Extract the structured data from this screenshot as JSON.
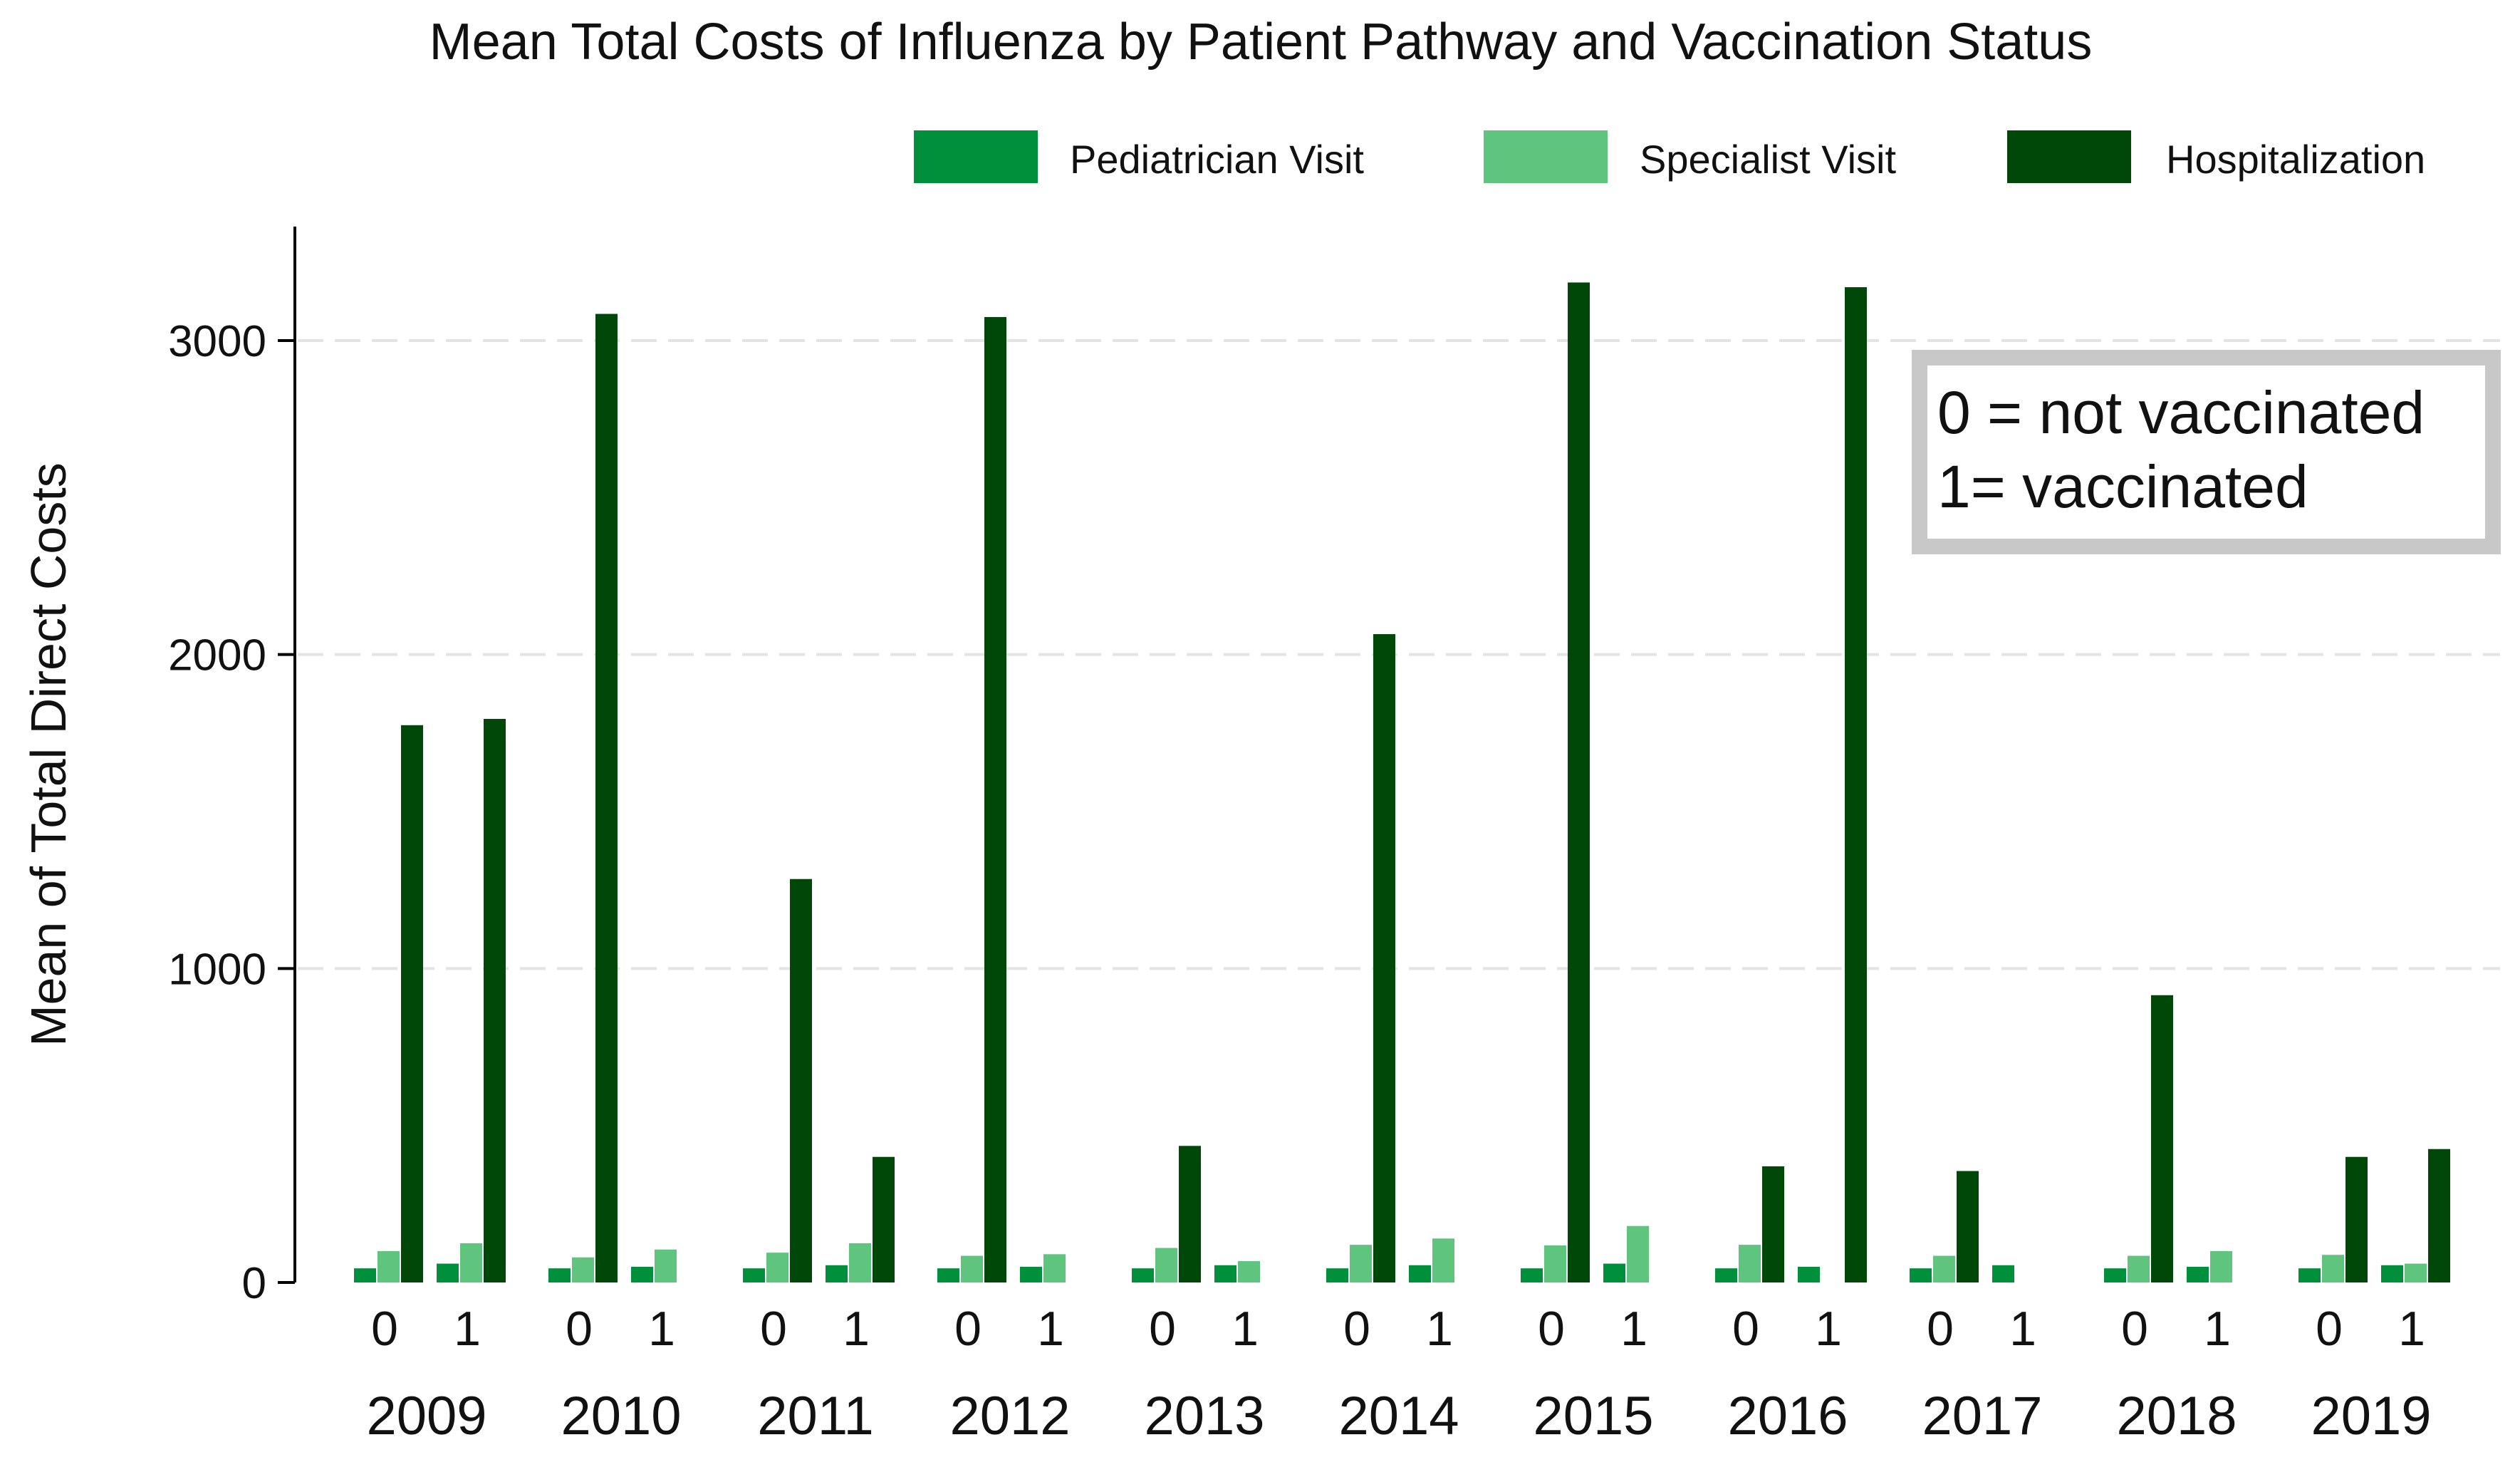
{
  "chart_data": {
    "type": "bar",
    "title": "Mean Total Costs of Influenza by Patient Pathway and Vaccination Status",
    "ylabel": "Mean of Total Direct Costs",
    "xlabel": "",
    "ylim": [
      0,
      3350
    ],
    "yticks": [
      0,
      1000,
      2000,
      3000
    ],
    "legend_position": "top-right",
    "years": [
      "2009",
      "2010",
      "2011",
      "2012",
      "2013",
      "2014",
      "2015",
      "2016",
      "2017",
      "2018",
      "2019"
    ],
    "statuses": [
      "0",
      "1"
    ],
    "colors": {
      "pediatrician": "#00903c",
      "specialist": "#5ec47e",
      "hospitalization": "#004808"
    },
    "series": [
      {
        "name": "Pediatrician Visit",
        "key": "pediatrician",
        "values": [
          [
            45,
            60
          ],
          [
            45,
            50
          ],
          [
            45,
            55
          ],
          [
            45,
            50
          ],
          [
            45,
            55
          ],
          [
            45,
            55
          ],
          [
            45,
            60
          ],
          [
            45,
            50
          ],
          [
            45,
            55
          ],
          [
            45,
            50
          ],
          [
            45,
            55
          ]
        ]
      },
      {
        "name": "Specialist Visit",
        "key": "specialist",
        "values": [
          [
            100,
            125
          ],
          [
            80,
            105
          ],
          [
            95,
            125
          ],
          [
            85,
            90
          ],
          [
            110,
            68
          ],
          [
            120,
            140
          ],
          [
            118,
            180
          ],
          [
            120,
            0
          ],
          [
            85,
            0
          ],
          [
            85,
            100
          ],
          [
            88,
            60
          ]
        ]
      },
      {
        "name": "Hospitalization",
        "key": "hospitalization",
        "values": [
          [
            1775,
            1795
          ],
          [
            3085,
            0
          ],
          [
            1285,
            400
          ],
          [
            3075,
            0
          ],
          [
            435,
            0
          ],
          [
            2065,
            0
          ],
          [
            3185,
            0
          ],
          [
            370,
            3170
          ],
          [
            355,
            0
          ],
          [
            915,
            0
          ],
          [
            400,
            425
          ]
        ]
      }
    ],
    "annotation": {
      "line1": "0 = not vaccinated",
      "line2": "1= vaccinated"
    }
  }
}
